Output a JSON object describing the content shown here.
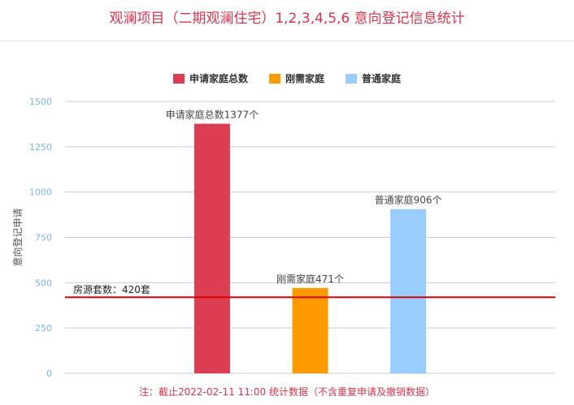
{
  "title": "观澜项目（二期观澜住宅）1,2,3,4,5,6 意向登记信息统计",
  "note": "注：截止2022-02-11 11:00 统计数据（不含重复申请及撤销数据）",
  "chart_data": {
    "type": "bar",
    "categories": [
      "申请家庭总数",
      "刚需家庭",
      "普通家庭"
    ],
    "series": [
      {
        "name": "申请家庭总数",
        "values": [
          1377,
          null,
          null
        ],
        "color": "#db3d52",
        "label": "申请家庭总数1377个"
      },
      {
        "name": "刚需家庭",
        "values": [
          null,
          471,
          null
        ],
        "color": "#fd9a00",
        "label": "刚需家庭471个"
      },
      {
        "name": "普通家庭",
        "values": [
          null,
          null,
          906
        ],
        "color": "#99ccff",
        "label": "普通家庭906个"
      }
    ],
    "ylabel": "意向登记申请",
    "ylim": [
      0,
      1500
    ],
    "yticks": [
      0,
      250,
      500,
      750,
      1000,
      1250,
      1500
    ],
    "grid": true,
    "legend_position": "top",
    "reference_line": {
      "value": 420,
      "label": "房源套数：420套",
      "color": "#dd0000"
    }
  }
}
